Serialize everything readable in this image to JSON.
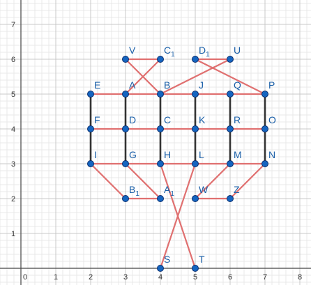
{
  "axes": {
    "x_ticks": [
      "0",
      "1",
      "2",
      "3",
      "4",
      "5",
      "6",
      "7",
      "8"
    ],
    "y_ticks": [
      "1",
      "2",
      "3",
      "4",
      "5",
      "6",
      "7"
    ],
    "xlim": [
      -0.6,
      8.3
    ],
    "ylim": [
      -0.4,
      7.8
    ],
    "minor_grid": true,
    "major_grid": true
  },
  "colors": {
    "red_edge": "#e07070",
    "black_edge": "#333333",
    "point_fill": "#1565c0",
    "point_stroke": "#0b2e6e",
    "label": "#1a5fa8",
    "major_grid": "#c8c8c8",
    "minor_grid": "#e8e8e8"
  },
  "points": [
    {
      "id": "V",
      "label": "V",
      "sub": "",
      "x": 3,
      "y": 6
    },
    {
      "id": "C1",
      "label": "C",
      "sub": "1",
      "x": 4,
      "y": 6
    },
    {
      "id": "D1",
      "label": "D",
      "sub": "1",
      "x": 5,
      "y": 6
    },
    {
      "id": "U",
      "label": "U",
      "sub": "",
      "x": 6,
      "y": 6
    },
    {
      "id": "E",
      "label": "E",
      "sub": "",
      "x": 2,
      "y": 5
    },
    {
      "id": "A",
      "label": "A",
      "sub": "",
      "x": 3,
      "y": 5
    },
    {
      "id": "B",
      "label": "B",
      "sub": "",
      "x": 4,
      "y": 5
    },
    {
      "id": "J",
      "label": "J",
      "sub": "",
      "x": 5,
      "y": 5
    },
    {
      "id": "Q",
      "label": "Q",
      "sub": "",
      "x": 6,
      "y": 5
    },
    {
      "id": "P",
      "label": "P",
      "sub": "",
      "x": 7,
      "y": 5
    },
    {
      "id": "F",
      "label": "F",
      "sub": "",
      "x": 2,
      "y": 4
    },
    {
      "id": "D",
      "label": "D",
      "sub": "",
      "x": 3,
      "y": 4
    },
    {
      "id": "C",
      "label": "C",
      "sub": "",
      "x": 4,
      "y": 4
    },
    {
      "id": "K",
      "label": "K",
      "sub": "",
      "x": 5,
      "y": 4
    },
    {
      "id": "R",
      "label": "R",
      "sub": "",
      "x": 6,
      "y": 4
    },
    {
      "id": "O",
      "label": "O",
      "sub": "",
      "x": 7,
      "y": 4
    },
    {
      "id": "I",
      "label": "I",
      "sub": "",
      "x": 2,
      "y": 3
    },
    {
      "id": "G",
      "label": "G",
      "sub": "",
      "x": 3,
      "y": 3
    },
    {
      "id": "H",
      "label": "H",
      "sub": "",
      "x": 4,
      "y": 3
    },
    {
      "id": "L",
      "label": "L",
      "sub": "",
      "x": 5,
      "y": 3
    },
    {
      "id": "M",
      "label": "M",
      "sub": "",
      "x": 6,
      "y": 3
    },
    {
      "id": "N",
      "label": "N",
      "sub": "",
      "x": 7,
      "y": 3
    },
    {
      "id": "B1",
      "label": "B",
      "sub": "1",
      "x": 3,
      "y": 2
    },
    {
      "id": "A1",
      "label": "A",
      "sub": "1",
      "x": 4,
      "y": 2
    },
    {
      "id": "W",
      "label": "W",
      "sub": "",
      "x": 5,
      "y": 2
    },
    {
      "id": "Z",
      "label": "Z",
      "sub": "",
      "x": 6,
      "y": 2
    },
    {
      "id": "S",
      "label": "S",
      "sub": "",
      "x": 4,
      "y": 0
    },
    {
      "id": "T",
      "label": "T",
      "sub": "",
      "x": 5,
      "y": 0
    }
  ],
  "red_edges": [
    [
      "V",
      "C1"
    ],
    [
      "D1",
      "U"
    ],
    [
      "E",
      "P"
    ],
    [
      "F",
      "O"
    ],
    [
      "I",
      "N"
    ],
    [
      "V",
      "B"
    ],
    [
      "C1",
      "A"
    ],
    [
      "D1",
      "P"
    ],
    [
      "U",
      "B"
    ],
    [
      "I",
      "B1"
    ],
    [
      "B1",
      "A1"
    ],
    [
      "G",
      "A1"
    ],
    [
      "W",
      "Z"
    ],
    [
      "M",
      "W"
    ],
    [
      "N",
      "Z"
    ],
    [
      "H",
      "T"
    ],
    [
      "L",
      "S"
    ]
  ],
  "black_edges": [
    [
      "E",
      "I"
    ],
    [
      "A",
      "G"
    ],
    [
      "B",
      "H"
    ],
    [
      "J",
      "L"
    ],
    [
      "Q",
      "M"
    ],
    [
      "P",
      "N"
    ]
  ]
}
